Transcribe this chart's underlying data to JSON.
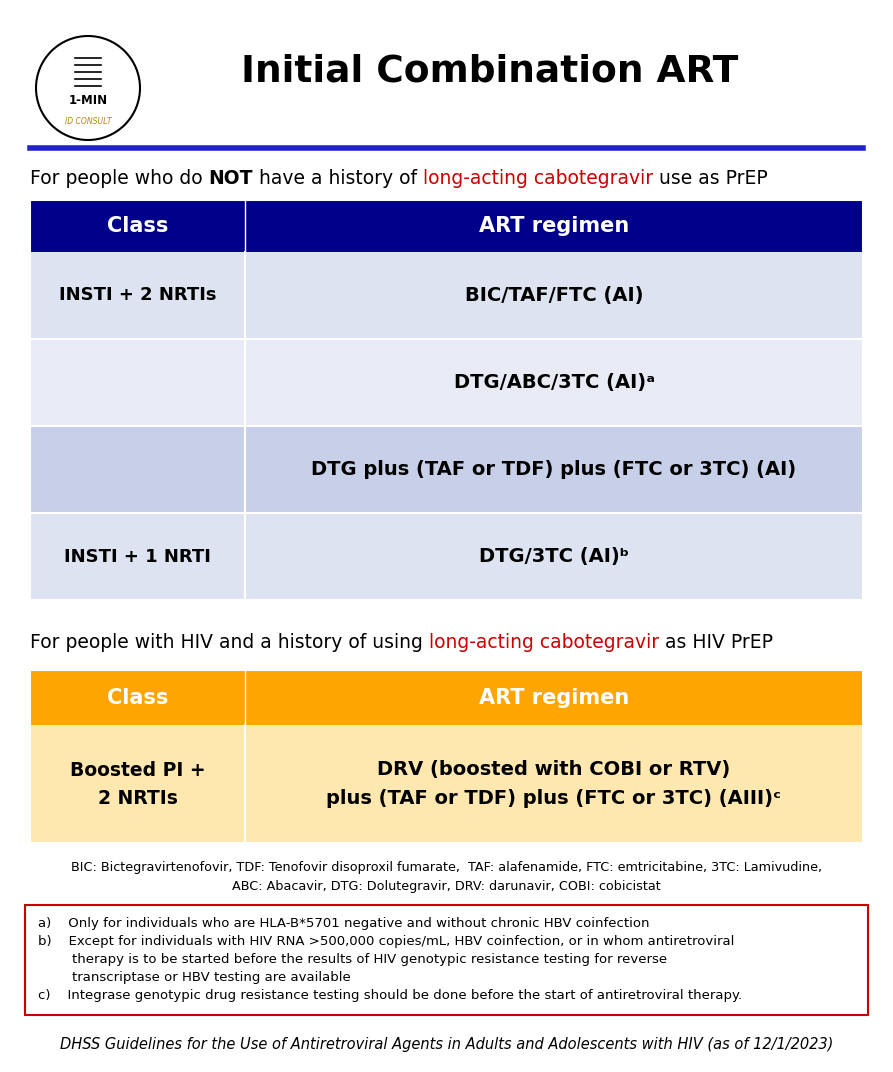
{
  "title": "Initial Combination ART",
  "bg_color": "#ffffff",
  "title_color": "#000000",
  "blue_line_color": "#2222cc",
  "red_color": "#cc0000",
  "table1_header_bg": "#00008B",
  "table1_header_fg": "#ffffff",
  "table1_row_colors": [
    "#dde3f0",
    "#e8ebf5",
    "#c8cfe8",
    "#dde3f0"
  ],
  "table2_header_bg": "#FFA500",
  "table2_header_fg": "#ffffff",
  "table2_row_color": "#FFE8B0",
  "footnote_border_color": "#cc0000",
  "abbrev_line1": "BIC: Bictegravirtenofovir, TDF: Tenofovir disoproxil fumarate,  TAF: alafenamide, FTC: emtricitabine, 3TC: Lamivudine,",
  "abbrev_line2": "ABC: Abacavir, DTG: Dolutegravir, DRV: darunavir, COBI: cobicistat",
  "source_text": "DHSS Guidelines for the Use of Antiretroviral Agents in Adults and Adolescents with HIV (as of 12/1/2023)"
}
